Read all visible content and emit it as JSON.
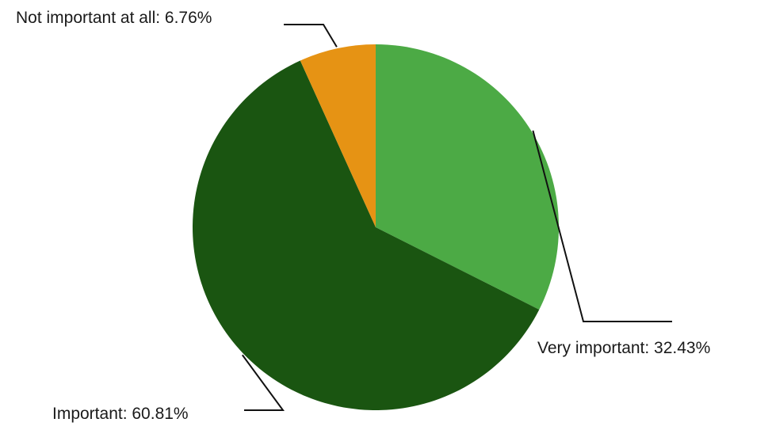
{
  "chart_data": {
    "type": "pie",
    "slices": [
      {
        "label": "Very important",
        "value": 32.43,
        "display": "Very important: 32.43%",
        "color": "#4caa45"
      },
      {
        "label": "Important",
        "value": 60.81,
        "display": "Important: 60.81%",
        "color": "#1a5511"
      },
      {
        "label": "Not important at all",
        "value": 6.76,
        "display": "Not important at all: 6.76%",
        "color": "#e69314"
      }
    ],
    "start": "12 o'clock",
    "direction": "clockwise",
    "labels": "outside, with leader lines"
  }
}
